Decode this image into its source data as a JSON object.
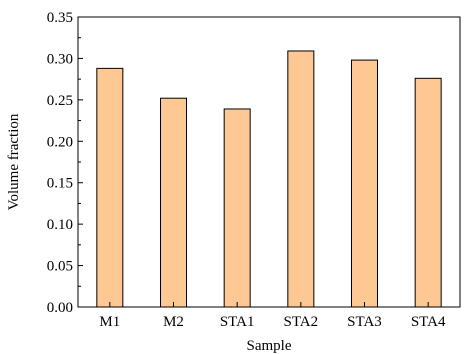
{
  "chart_data": {
    "type": "bar",
    "categories": [
      "M1",
      "M2",
      "STA1",
      "STA2",
      "STA3",
      "STA4"
    ],
    "values": [
      0.288,
      0.252,
      0.239,
      0.309,
      0.298,
      0.276
    ],
    "xlabel": "Sample",
    "ylabel": "Volume fraction",
    "ylim": [
      0.0,
      0.35
    ],
    "yticks": [
      "0.00",
      "0.05",
      "0.10",
      "0.15",
      "0.20",
      "0.25",
      "0.30",
      "0.35"
    ],
    "grid": false,
    "legend": "none",
    "bar_color": "#fdc894",
    "edge_color": "#000000"
  }
}
